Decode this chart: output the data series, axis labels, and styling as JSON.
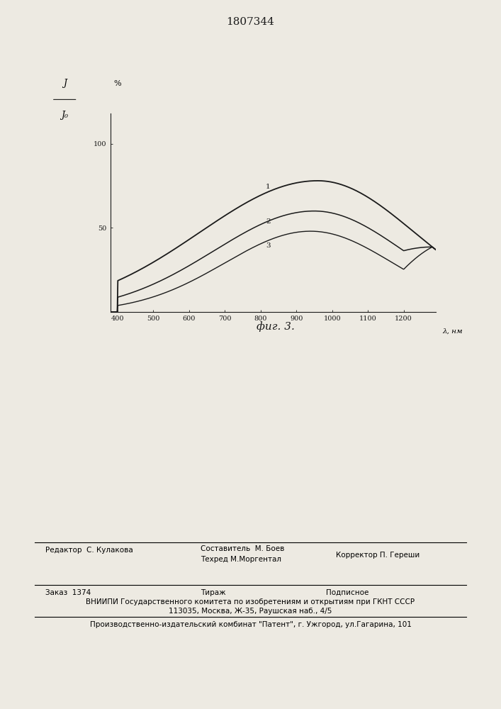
{
  "title": "1807344",
  "fig_label": "фиг. 3.",
  "ylabel_frac_num": "J",
  "ylabel_frac_den": "J₀",
  "ylabel_units": "%",
  "xlabel": "λ, нм",
  "x_ticks": [
    400,
    500,
    600,
    700,
    800,
    900,
    1000,
    1100,
    1200
  ],
  "y_ticks": [
    50,
    100
  ],
  "x_min": 380,
  "x_max": 1290,
  "y_min": 0,
  "y_max": 118,
  "curve_labels": [
    "1",
    "2",
    "3"
  ],
  "background_color": "#edeae2",
  "line_color": "#1a1a1a",
  "footer_col1_line1": "Редактор  С. Кулакова",
  "footer_col2_line1": "Составитель  М. Боев",
  "footer_col2_line2": "Техред М.Моргентал",
  "footer_col3_line1": "Корректор П. Гереши",
  "footer2_col1": "Заказ  1374",
  "footer2_col2": "Тираж",
  "footer2_col3": "Подписное",
  "footer2_line2": "ВНИИПИ Государственного комитета по изобретениям и открытиям при ГКНТ СССР",
  "footer2_line3": "113035, Москва, Ж-35, Раушская наб., 4/5",
  "footer3": "Производственно-издательский комбинат \"Патент\", г. Ужгород, ул.Гагарина, 101"
}
